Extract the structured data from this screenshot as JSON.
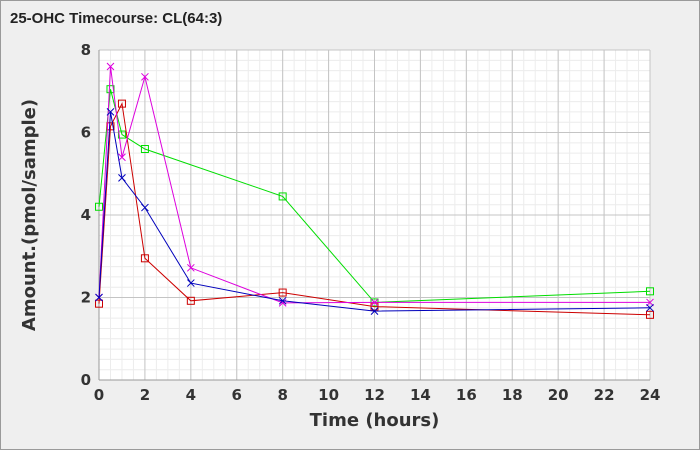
{
  "chart_data": {
    "type": "line",
    "title": "25-OHC Timecourse: CL(64:3)",
    "xlabel": "Time (hours)",
    "ylabel": "Amount.(pmol/sample)",
    "xlim": [
      0,
      24
    ],
    "ylim": [
      0,
      8
    ],
    "xticks": [
      0,
      2,
      4,
      6,
      8,
      10,
      12,
      14,
      16,
      18,
      20,
      22,
      24
    ],
    "yticks": [
      0,
      2,
      4,
      6,
      8
    ],
    "grid": true,
    "legend": "none",
    "series": [
      {
        "color": "#00dd00",
        "marker": "square",
        "x": [
          0,
          0.5,
          1,
          2,
          8,
          12,
          24
        ],
        "y": [
          4.2,
          7.05,
          5.95,
          5.6,
          4.45,
          1.88,
          2.15
        ]
      },
      {
        "color": "#cc0000",
        "marker": "square",
        "x": [
          0,
          0.5,
          1,
          2,
          4,
          8,
          12,
          24
        ],
        "y": [
          1.85,
          6.15,
          6.7,
          2.95,
          1.92,
          2.12,
          1.78,
          1.58
        ]
      },
      {
        "color": "#dd00dd",
        "marker": "x",
        "x": [
          0,
          0.5,
          1,
          2,
          4,
          8,
          12,
          24
        ],
        "y": [
          2.0,
          7.6,
          5.4,
          7.35,
          2.72,
          1.87,
          1.88,
          1.88
        ]
      },
      {
        "color": "#0000bb",
        "marker": "x",
        "x": [
          0,
          0.5,
          1,
          2,
          4,
          8,
          12,
          24
        ],
        "y": [
          2.0,
          6.5,
          4.9,
          4.18,
          2.35,
          1.92,
          1.67,
          1.75
        ]
      }
    ]
  }
}
